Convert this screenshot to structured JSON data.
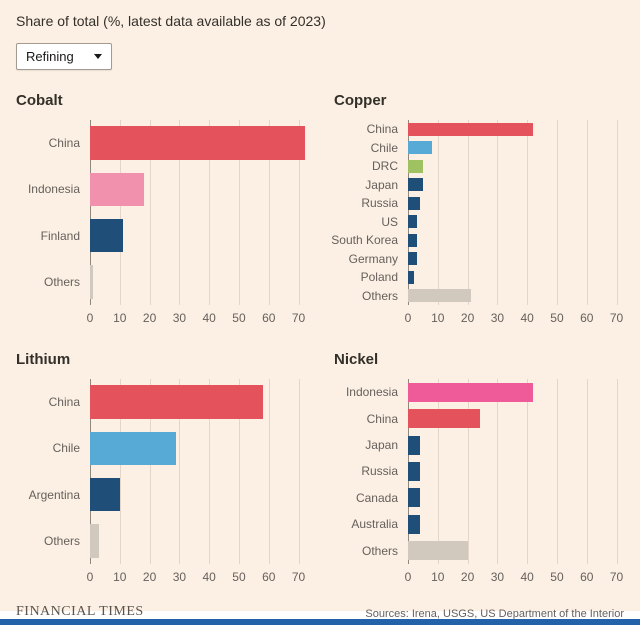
{
  "header": {
    "title": "Share of total (%, latest data available as of 2023)",
    "dropdown_value": "Refining"
  },
  "footer": {
    "brand": "FINANCIAL TIMES",
    "sources": "Sources: Irena, USGS, US Department of the Interior"
  },
  "colors": {
    "background": "#fcf0e4",
    "red": "#e4525c",
    "pink_light": "#f191ad",
    "pink_bright": "#ef5a99",
    "navy": "#1f4e79",
    "light_blue": "#57a9d6",
    "green": "#9fc162",
    "gray_others": "#d2c9be",
    "footer_bar_blue": "#2262a8"
  },
  "chart_data": [
    {
      "type": "bar",
      "orientation": "horizontal",
      "title": "Cobalt",
      "categories": [
        "China",
        "Indonesia",
        "Finland",
        "Others"
      ],
      "values": [
        72,
        18,
        11,
        1
      ],
      "colors": [
        "#e4525c",
        "#f191ad",
        "#1f4e79",
        "#d2c9be"
      ],
      "xticks": [
        0,
        10,
        20,
        30,
        40,
        50,
        60,
        70
      ],
      "xmax": 72.5,
      "xlabel": "",
      "ylabel": "",
      "grid": true,
      "unit": "%"
    },
    {
      "type": "bar",
      "orientation": "horizontal",
      "title": "Copper",
      "categories": [
        "China",
        "Chile",
        "DRC",
        "Japan",
        "Russia",
        "US",
        "South Korea",
        "Germany",
        "Poland",
        "Others"
      ],
      "values": [
        42,
        8,
        5,
        5,
        4,
        3,
        3,
        3,
        2,
        21
      ],
      "colors": [
        "#e4525c",
        "#57a9d6",
        "#9fc162",
        "#1f4e79",
        "#1f4e79",
        "#1f4e79",
        "#1f4e79",
        "#1f4e79",
        "#1f4e79",
        "#d2c9be"
      ],
      "xticks": [
        0,
        10,
        20,
        30,
        40,
        50,
        60,
        70
      ],
      "xmax": 72.5,
      "xlabel": "",
      "ylabel": "",
      "grid": true,
      "unit": "%"
    },
    {
      "type": "bar",
      "orientation": "horizontal",
      "title": "Lithium",
      "categories": [
        "China",
        "Chile",
        "Argentina",
        "Others"
      ],
      "values": [
        58,
        29,
        10,
        3
      ],
      "colors": [
        "#e4525c",
        "#57a9d6",
        "#1f4e79",
        "#d2c9be"
      ],
      "xticks": [
        0,
        10,
        20,
        30,
        40,
        50,
        60,
        70
      ],
      "xmax": 72.5,
      "xlabel": "",
      "ylabel": "",
      "grid": true,
      "unit": "%"
    },
    {
      "type": "bar",
      "orientation": "horizontal",
      "title": "Nickel",
      "categories": [
        "Indonesia",
        "China",
        "Japan",
        "Russia",
        "Canada",
        "Australia",
        "Others"
      ],
      "values": [
        42,
        24,
        4,
        4,
        4,
        4,
        20
      ],
      "colors": [
        "#ef5a99",
        "#e4525c",
        "#1f4e79",
        "#1f4e79",
        "#1f4e79",
        "#1f4e79",
        "#d2c9be"
      ],
      "xticks": [
        0,
        10,
        20,
        30,
        40,
        50,
        60,
        70
      ],
      "xmax": 72.5,
      "xlabel": "",
      "ylabel": "",
      "grid": true,
      "unit": "%"
    }
  ]
}
